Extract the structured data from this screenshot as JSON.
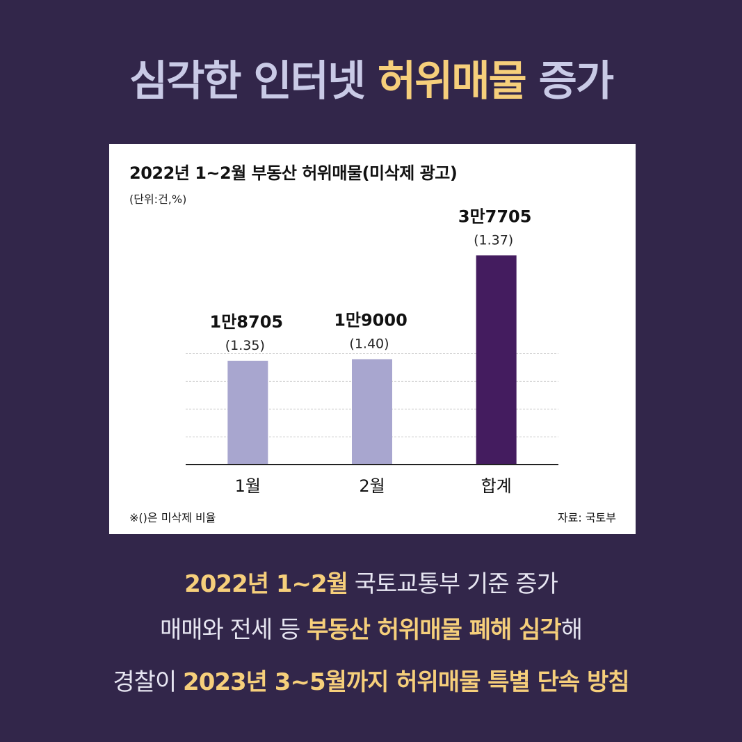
{
  "headline": {
    "part1": "심각한 인터넷 ",
    "highlight": "허위매물",
    "part2": " 증가"
  },
  "chart": {
    "title": "2022년 1~2월 부동산 허위매물(미삭제 광고)",
    "unit": "(단위:건,%)",
    "footnote": "※()은 미삭제 비율",
    "source": "자료: 국토부"
  },
  "chart_data": {
    "type": "bar",
    "categories": [
      "1월",
      "2월",
      "합계"
    ],
    "values": [
      18705,
      19000,
      37705
    ],
    "value_labels": [
      "1만8705",
      "1만9000",
      "3만7705"
    ],
    "ratio_labels": [
      "(1.35)",
      "(1.40)",
      "(1.37)"
    ],
    "colors": [
      "#a8a6cf",
      "#a8a6cf",
      "#441c5f"
    ],
    "ylim": [
      0,
      40000
    ],
    "grid": true
  },
  "summary": {
    "line1": [
      {
        "text": "2022년 1~2월",
        "hl": true
      },
      {
        "text": " 국토교통부 기준 증가",
        "hl": false
      }
    ],
    "line2": [
      {
        "text": "매매와 전세 등 ",
        "hl": false
      },
      {
        "text": "부동산 허위매물 폐해 심각",
        "hl": true
      },
      {
        "text": "해",
        "hl": false
      }
    ],
    "line3": [
      {
        "text": "경찰이 ",
        "hl": false
      },
      {
        "text": "2023년 3~5월까지 허위매물 특별 단속 방침",
        "hl": true
      }
    ]
  }
}
